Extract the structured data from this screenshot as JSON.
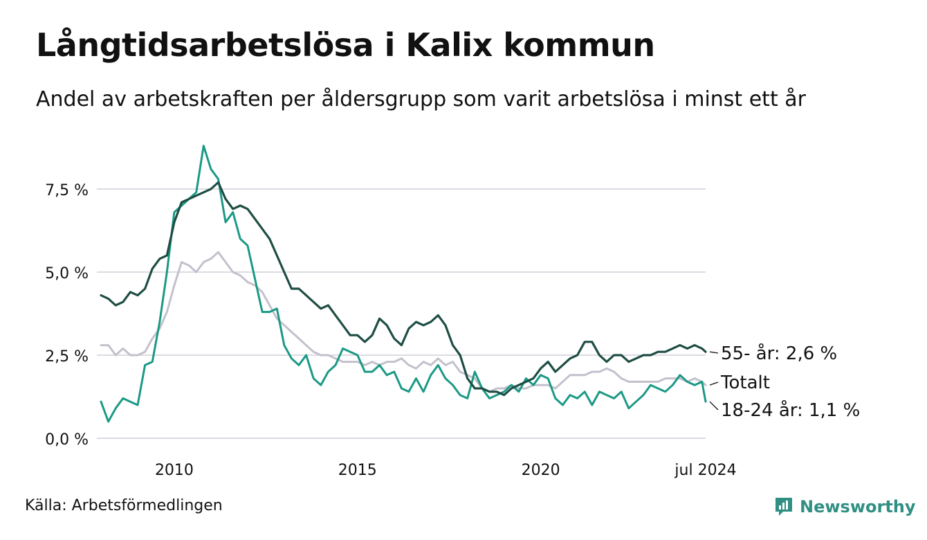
{
  "title": "Långtidsarbetslösa i Kalix kommun",
  "subtitle": "Andel av arbetskraften per åldersgrupp som varit arbetslösa i minst ett år",
  "source": "Källa: Arbetsförmedlingen",
  "brand": "Newsworthy",
  "colors": {
    "old": "#1e4d44",
    "young": "#1a9985",
    "total": "#c4c0cc",
    "grid": "#dcdbe3",
    "brand": "#2f8f83"
  },
  "chart_data": {
    "type": "line",
    "title": "Långtidsarbetslösa i Kalix kommun",
    "xlim": [
      2008.0,
      2024.5
    ],
    "ylim": [
      0,
      8.8
    ],
    "yticks": [
      0,
      2.5,
      5.0,
      7.5
    ],
    "ytick_labels": [
      "0,0 %",
      "2,5 %",
      "5,0 %",
      "7,5 %"
    ],
    "xticks": [
      2010,
      2015,
      2020,
      2024.5
    ],
    "xtick_labels": [
      "2010",
      "2015",
      "2020",
      "jul 2024"
    ],
    "series": [
      {
        "name": "Totalt",
        "label": "Totalt",
        "x": [
          2008.0,
          2008.2,
          2008.4,
          2008.6,
          2008.8,
          2009.0,
          2009.2,
          2009.4,
          2009.6,
          2009.8,
          2010.0,
          2010.2,
          2010.4,
          2010.6,
          2010.8,
          2011.0,
          2011.2,
          2011.4,
          2011.6,
          2011.8,
          2012.0,
          2012.2,
          2012.4,
          2012.6,
          2012.8,
          2013.0,
          2013.2,
          2013.4,
          2013.6,
          2013.8,
          2014.0,
          2014.2,
          2014.4,
          2014.6,
          2014.8,
          2015.0,
          2015.2,
          2015.4,
          2015.6,
          2015.8,
          2016.0,
          2016.2,
          2016.4,
          2016.6,
          2016.8,
          2017.0,
          2017.2,
          2017.4,
          2017.6,
          2017.8,
          2018.0,
          2018.2,
          2018.4,
          2018.6,
          2018.8,
          2019.0,
          2019.2,
          2019.4,
          2019.6,
          2019.8,
          2020.0,
          2020.2,
          2020.4,
          2020.6,
          2020.8,
          2021.0,
          2021.2,
          2021.4,
          2021.6,
          2021.8,
          2022.0,
          2022.2,
          2022.4,
          2022.6,
          2022.8,
          2023.0,
          2023.2,
          2023.4,
          2023.6,
          2023.8,
          2024.0,
          2024.2,
          2024.4,
          2024.5
        ],
        "values": [
          2.8,
          2.8,
          2.5,
          2.7,
          2.5,
          2.5,
          2.6,
          3.0,
          3.3,
          3.8,
          4.6,
          5.3,
          5.2,
          5.0,
          5.3,
          5.4,
          5.6,
          5.3,
          5.0,
          4.9,
          4.7,
          4.6,
          4.4,
          4.0,
          3.6,
          3.4,
          3.2,
          3.0,
          2.8,
          2.6,
          2.5,
          2.5,
          2.4,
          2.3,
          2.3,
          2.3,
          2.2,
          2.3,
          2.2,
          2.3,
          2.3,
          2.4,
          2.2,
          2.1,
          2.3,
          2.2,
          2.4,
          2.2,
          2.3,
          2.0,
          1.9,
          1.8,
          1.5,
          1.4,
          1.5,
          1.5,
          1.6,
          1.5,
          1.5,
          1.6,
          1.6,
          1.6,
          1.5,
          1.7,
          1.9,
          1.9,
          1.9,
          2.0,
          2.0,
          2.1,
          2.0,
          1.8,
          1.7,
          1.7,
          1.7,
          1.7,
          1.7,
          1.8,
          1.8,
          1.8,
          1.7,
          1.8,
          1.7,
          1.6
        ]
      },
      {
        "name": "18-24 år",
        "label": "18-24 år: 1,1 %",
        "x": [
          2008.0,
          2008.2,
          2008.4,
          2008.6,
          2008.8,
          2009.0,
          2009.2,
          2009.4,
          2009.6,
          2009.8,
          2010.0,
          2010.2,
          2010.4,
          2010.6,
          2010.8,
          2011.0,
          2011.2,
          2011.4,
          2011.6,
          2011.8,
          2012.0,
          2012.2,
          2012.4,
          2012.6,
          2012.8,
          2013.0,
          2013.2,
          2013.4,
          2013.6,
          2013.8,
          2014.0,
          2014.2,
          2014.4,
          2014.6,
          2014.8,
          2015.0,
          2015.2,
          2015.4,
          2015.6,
          2015.8,
          2016.0,
          2016.2,
          2016.4,
          2016.6,
          2016.8,
          2017.0,
          2017.2,
          2017.4,
          2017.6,
          2017.8,
          2018.0,
          2018.2,
          2018.4,
          2018.6,
          2018.8,
          2019.0,
          2019.2,
          2019.4,
          2019.6,
          2019.8,
          2020.0,
          2020.2,
          2020.4,
          2020.6,
          2020.8,
          2021.0,
          2021.2,
          2021.4,
          2021.6,
          2021.8,
          2022.0,
          2022.2,
          2022.4,
          2022.6,
          2022.8,
          2023.0,
          2023.2,
          2023.4,
          2023.6,
          2023.8,
          2024.0,
          2024.2,
          2024.4,
          2024.5
        ],
        "values": [
          1.1,
          0.5,
          0.9,
          1.2,
          1.1,
          1.0,
          2.2,
          2.3,
          3.5,
          5.0,
          6.8,
          7.0,
          7.2,
          7.4,
          8.8,
          8.1,
          7.8,
          6.5,
          6.8,
          6.0,
          5.8,
          4.8,
          3.8,
          3.8,
          3.9,
          2.8,
          2.4,
          2.2,
          2.5,
          1.8,
          1.6,
          2.0,
          2.2,
          2.7,
          2.6,
          2.5,
          2.0,
          2.0,
          2.2,
          1.9,
          2.0,
          1.5,
          1.4,
          1.8,
          1.4,
          1.9,
          2.2,
          1.8,
          1.6,
          1.3,
          1.2,
          2.0,
          1.5,
          1.2,
          1.3,
          1.4,
          1.6,
          1.4,
          1.8,
          1.6,
          1.9,
          1.8,
          1.2,
          1.0,
          1.3,
          1.2,
          1.4,
          1.0,
          1.4,
          1.3,
          1.2,
          1.4,
          0.9,
          1.1,
          1.3,
          1.6,
          1.5,
          1.4,
          1.6,
          1.9,
          1.7,
          1.6,
          1.7,
          1.1
        ]
      },
      {
        "name": "55- år",
        "label": "55- år: 2,6 %",
        "x": [
          2008.0,
          2008.2,
          2008.4,
          2008.6,
          2008.8,
          2009.0,
          2009.2,
          2009.4,
          2009.6,
          2009.8,
          2010.0,
          2010.2,
          2010.4,
          2010.6,
          2010.8,
          2011.0,
          2011.2,
          2011.4,
          2011.6,
          2011.8,
          2012.0,
          2012.2,
          2012.4,
          2012.6,
          2012.8,
          2013.0,
          2013.2,
          2013.4,
          2013.6,
          2013.8,
          2014.0,
          2014.2,
          2014.4,
          2014.6,
          2014.8,
          2015.0,
          2015.2,
          2015.4,
          2015.6,
          2015.8,
          2016.0,
          2016.2,
          2016.4,
          2016.6,
          2016.8,
          2017.0,
          2017.2,
          2017.4,
          2017.6,
          2017.8,
          2018.0,
          2018.2,
          2018.4,
          2018.6,
          2018.8,
          2019.0,
          2019.2,
          2019.4,
          2019.6,
          2019.8,
          2020.0,
          2020.2,
          2020.4,
          2020.6,
          2020.8,
          2021.0,
          2021.2,
          2021.4,
          2021.6,
          2021.8,
          2022.0,
          2022.2,
          2022.4,
          2022.6,
          2022.8,
          2023.0,
          2023.2,
          2023.4,
          2023.6,
          2023.8,
          2024.0,
          2024.2,
          2024.4,
          2024.5
        ],
        "values": [
          4.3,
          4.2,
          4.0,
          4.1,
          4.4,
          4.3,
          4.5,
          5.1,
          5.4,
          5.5,
          6.5,
          7.1,
          7.2,
          7.3,
          7.4,
          7.5,
          7.7,
          7.2,
          6.9,
          7.0,
          6.9,
          6.6,
          6.3,
          6.0,
          5.5,
          5.0,
          4.5,
          4.5,
          4.3,
          4.1,
          3.9,
          4.0,
          3.7,
          3.4,
          3.1,
          3.1,
          2.9,
          3.1,
          3.6,
          3.4,
          3.0,
          2.8,
          3.3,
          3.5,
          3.4,
          3.5,
          3.7,
          3.4,
          2.8,
          2.5,
          1.8,
          1.5,
          1.5,
          1.4,
          1.4,
          1.3,
          1.5,
          1.6,
          1.7,
          1.8,
          2.1,
          2.3,
          2.0,
          2.2,
          2.4,
          2.5,
          2.9,
          2.9,
          2.5,
          2.3,
          2.5,
          2.5,
          2.3,
          2.4,
          2.5,
          2.5,
          2.6,
          2.6,
          2.7,
          2.8,
          2.7,
          2.8,
          2.7,
          2.6
        ]
      }
    ]
  }
}
